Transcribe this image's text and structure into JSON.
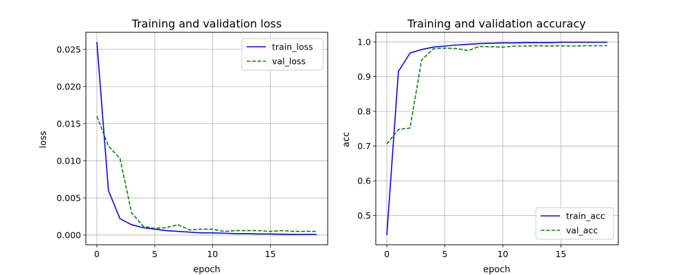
{
  "chart_data": [
    {
      "type": "line",
      "title": "Training and validation loss",
      "xlabel": "epoch",
      "ylabel": "loss",
      "xlim": [
        -0.95,
        19.95
      ],
      "ylim": [
        -0.0013,
        0.0273
      ],
      "xticks": [
        0,
        5,
        10,
        15
      ],
      "xtick_labels": [
        "0",
        "5",
        "10",
        "15"
      ],
      "yticks": [
        0.0,
        0.005,
        0.01,
        0.015,
        0.02,
        0.025
      ],
      "ytick_labels": [
        "0.000",
        "0.005",
        "0.010",
        "0.015",
        "0.020",
        "0.025"
      ],
      "grid": true,
      "legend_position": "top-right",
      "x": [
        0,
        1,
        2,
        3,
        4,
        5,
        6,
        7,
        8,
        9,
        10,
        11,
        12,
        13,
        14,
        15,
        16,
        17,
        18,
        19
      ],
      "series": [
        {
          "name": "train_loss",
          "color": "#0000ff",
          "style": "solid",
          "values": [
            0.026,
            0.006,
            0.0022,
            0.0014,
            0.001,
            0.0008,
            0.0006,
            0.0005,
            0.0004,
            0.0003,
            0.0003,
            0.00025,
            0.0002,
            0.0002,
            0.00015,
            0.00015,
            0.00012,
            0.0001,
            0.0001,
            0.0001
          ]
        },
        {
          "name": "val_loss",
          "color": "#008000",
          "style": "dashed",
          "values": [
            0.016,
            0.012,
            0.0103,
            0.003,
            0.0012,
            0.0009,
            0.001,
            0.0014,
            0.0007,
            0.0008,
            0.0008,
            0.0005,
            0.0006,
            0.0006,
            0.0006,
            0.0005,
            0.0006,
            0.0005,
            0.0005,
            0.0005
          ]
        }
      ]
    },
    {
      "type": "line",
      "title": "Training and validation accuracy",
      "xlabel": "epoch",
      "ylabel": "acc",
      "xlim": [
        -0.95,
        19.95
      ],
      "ylim": [
        0.4161,
        1.0276
      ],
      "xticks": [
        0,
        5,
        10,
        15
      ],
      "xtick_labels": [
        "0",
        "5",
        "10",
        "15"
      ],
      "yticks": [
        0.5,
        0.6,
        0.7,
        0.8,
        0.9,
        1.0
      ],
      "ytick_labels": [
        "0.5",
        "0.6",
        "0.7",
        "0.8",
        "0.9",
        "1.0"
      ],
      "grid": true,
      "legend_position": "bottom-right",
      "x": [
        0,
        1,
        2,
        3,
        4,
        5,
        6,
        7,
        8,
        9,
        10,
        11,
        12,
        13,
        14,
        15,
        16,
        17,
        18,
        19
      ],
      "series": [
        {
          "name": "train_acc",
          "color": "#0000ff",
          "style": "solid",
          "values": [
            0.444,
            0.915,
            0.968,
            0.978,
            0.985,
            0.988,
            0.991,
            0.993,
            0.995,
            0.996,
            0.997,
            0.997,
            0.998,
            0.998,
            0.998,
            0.999,
            0.999,
            0.999,
            0.999,
            0.999
          ]
        },
        {
          "name": "val_acc",
          "color": "#008000",
          "style": "dashed",
          "values": [
            0.706,
            0.748,
            0.752,
            0.948,
            0.98,
            0.982,
            0.981,
            0.975,
            0.987,
            0.986,
            0.985,
            0.988,
            0.988,
            0.989,
            0.988,
            0.989,
            0.988,
            0.989,
            0.989,
            0.989
          ]
        }
      ]
    }
  ]
}
